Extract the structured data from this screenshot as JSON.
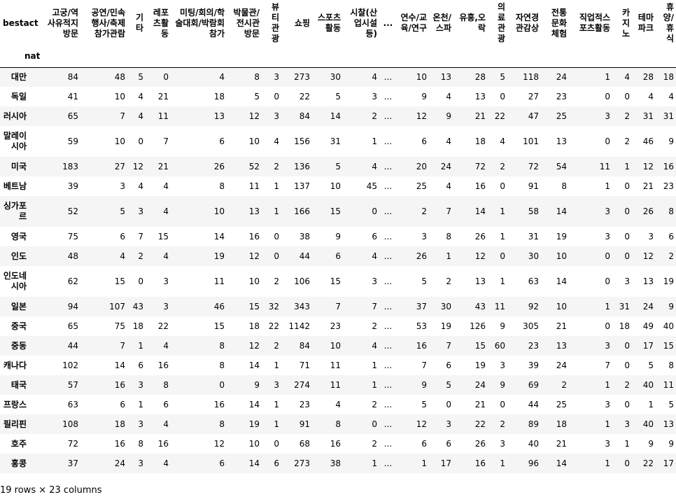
{
  "table": {
    "column_index_name": "bestact",
    "row_index_name": "nat",
    "columns": [
      "고궁/역사유적지방문",
      "공연/민속행사/축제참가관람",
      "기타",
      "레포츠활동",
      "미팅/회의/학술대회/박람회참가",
      "박물관/전시관방문",
      "뷰티관광",
      "쇼핑",
      "스포츠활동",
      "시찰(산업시설등)",
      "...",
      "연수/교육/연구",
      "온천/스파",
      "유흥,오락",
      "의료관광",
      "자연경관감상",
      "전통문화체험",
      "직업적스포츠활동",
      "카지노",
      "테마파크",
      "휴양/휴식"
    ],
    "rows": [
      {
        "label": "대만",
        "values": [
          "84",
          "48",
          "5",
          "0",
          "4",
          "8",
          "3",
          "273",
          "30",
          "4",
          "...",
          "10",
          "13",
          "28",
          "5",
          "118",
          "24",
          "1",
          "4",
          "28",
          "18"
        ]
      },
      {
        "label": "독일",
        "values": [
          "41",
          "10",
          "4",
          "21",
          "18",
          "5",
          "0",
          "22",
          "5",
          "3",
          "...",
          "9",
          "4",
          "13",
          "0",
          "27",
          "23",
          "0",
          "0",
          "4",
          "4"
        ]
      },
      {
        "label": "러시아",
        "values": [
          "65",
          "7",
          "4",
          "11",
          "13",
          "12",
          "3",
          "84",
          "14",
          "2",
          "...",
          "12",
          "9",
          "21",
          "22",
          "47",
          "25",
          "3",
          "2",
          "31",
          "31"
        ]
      },
      {
        "label": "말레이시아",
        "values": [
          "59",
          "10",
          "0",
          "7",
          "6",
          "10",
          "4",
          "156",
          "31",
          "1",
          "...",
          "6",
          "4",
          "18",
          "4",
          "101",
          "13",
          "0",
          "2",
          "46",
          "9"
        ]
      },
      {
        "label": "미국",
        "values": [
          "183",
          "27",
          "12",
          "21",
          "26",
          "52",
          "2",
          "136",
          "5",
          "4",
          "...",
          "20",
          "24",
          "72",
          "2",
          "72",
          "54",
          "11",
          "1",
          "12",
          "16"
        ]
      },
      {
        "label": "베트남",
        "values": [
          "39",
          "3",
          "4",
          "4",
          "8",
          "11",
          "1",
          "137",
          "10",
          "45",
          "...",
          "25",
          "4",
          "16",
          "0",
          "91",
          "8",
          "1",
          "0",
          "21",
          "23"
        ]
      },
      {
        "label": "싱가포르",
        "values": [
          "52",
          "5",
          "3",
          "4",
          "10",
          "13",
          "1",
          "166",
          "15",
          "0",
          "...",
          "2",
          "7",
          "14",
          "1",
          "58",
          "14",
          "3",
          "0",
          "26",
          "8"
        ]
      },
      {
        "label": "영국",
        "values": [
          "75",
          "6",
          "7",
          "15",
          "14",
          "16",
          "0",
          "38",
          "9",
          "6",
          "...",
          "3",
          "8",
          "26",
          "1",
          "31",
          "19",
          "3",
          "0",
          "3",
          "6"
        ]
      },
      {
        "label": "인도",
        "values": [
          "48",
          "4",
          "2",
          "4",
          "19",
          "12",
          "0",
          "44",
          "6",
          "4",
          "...",
          "26",
          "1",
          "12",
          "0",
          "30",
          "10",
          "0",
          "0",
          "12",
          "2"
        ]
      },
      {
        "label": "인도네시아",
        "values": [
          "62",
          "15",
          "0",
          "3",
          "11",
          "10",
          "2",
          "106",
          "15",
          "3",
          "...",
          "5",
          "2",
          "13",
          "1",
          "63",
          "14",
          "0",
          "3",
          "13",
          "19"
        ]
      },
      {
        "label": "일본",
        "values": [
          "94",
          "107",
          "43",
          "3",
          "46",
          "15",
          "32",
          "343",
          "7",
          "7",
          "...",
          "37",
          "30",
          "43",
          "11",
          "92",
          "10",
          "1",
          "31",
          "24",
          "9"
        ]
      },
      {
        "label": "중국",
        "values": [
          "65",
          "75",
          "18",
          "22",
          "15",
          "18",
          "22",
          "1142",
          "23",
          "2",
          "...",
          "53",
          "19",
          "126",
          "9",
          "305",
          "21",
          "0",
          "18",
          "49",
          "40"
        ]
      },
      {
        "label": "중동",
        "values": [
          "44",
          "7",
          "1",
          "4",
          "8",
          "12",
          "2",
          "84",
          "10",
          "4",
          "...",
          "16",
          "7",
          "15",
          "60",
          "23",
          "13",
          "3",
          "0",
          "17",
          "15"
        ]
      },
      {
        "label": "캐나다",
        "values": [
          "102",
          "14",
          "6",
          "16",
          "8",
          "14",
          "1",
          "71",
          "11",
          "1",
          "...",
          "7",
          "6",
          "19",
          "3",
          "39",
          "24",
          "7",
          "0",
          "5",
          "8"
        ]
      },
      {
        "label": "태국",
        "values": [
          "57",
          "16",
          "3",
          "8",
          "0",
          "9",
          "3",
          "274",
          "11",
          "1",
          "...",
          "9",
          "5",
          "24",
          "9",
          "69",
          "2",
          "1",
          "2",
          "40",
          "11"
        ]
      },
      {
        "label": "프랑스",
        "values": [
          "63",
          "6",
          "1",
          "6",
          "16",
          "14",
          "1",
          "23",
          "4",
          "2",
          "...",
          "5",
          "0",
          "21",
          "0",
          "44",
          "25",
          "3",
          "0",
          "1",
          "5"
        ]
      },
      {
        "label": "필리핀",
        "values": [
          "108",
          "18",
          "3",
          "4",
          "8",
          "19",
          "1",
          "91",
          "8",
          "0",
          "...",
          "12",
          "3",
          "22",
          "2",
          "89",
          "18",
          "1",
          "3",
          "40",
          "13"
        ]
      },
      {
        "label": "호주",
        "values": [
          "72",
          "16",
          "8",
          "16",
          "12",
          "10",
          "0",
          "68",
          "16",
          "2",
          "...",
          "6",
          "6",
          "26",
          "3",
          "40",
          "21",
          "3",
          "1",
          "9",
          "9"
        ]
      },
      {
        "label": "홍콩",
        "values": [
          "37",
          "24",
          "3",
          "4",
          "6",
          "14",
          "6",
          "273",
          "38",
          "1",
          "...",
          "1",
          "17",
          "16",
          "1",
          "96",
          "14",
          "1",
          "0",
          "22",
          "17"
        ]
      }
    ]
  },
  "footer": {
    "shape_text": "19 rows × 23 columns"
  }
}
